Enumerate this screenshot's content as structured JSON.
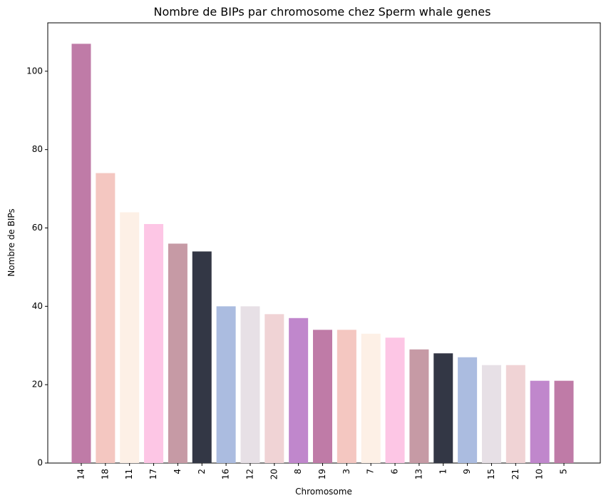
{
  "chart_data": {
    "type": "bar",
    "title": "Nombre de BIPs par chromosome chez Sperm whale genes",
    "xlabel": "Chromosome",
    "ylabel": "Nombre de BIPs",
    "categories": [
      "14",
      "18",
      "11",
      "17",
      "4",
      "2",
      "16",
      "12",
      "20",
      "8",
      "19",
      "3",
      "7",
      "6",
      "13",
      "1",
      "9",
      "15",
      "21",
      "10",
      "5"
    ],
    "values": [
      107,
      74,
      64,
      61,
      56,
      54,
      40,
      40,
      38,
      37,
      34,
      34,
      33,
      32,
      29,
      28,
      27,
      25,
      25,
      21,
      21
    ],
    "colors": [
      "#bf7ba7",
      "#f4c7c1",
      "#fdf0e6",
      "#fdc6e5",
      "#c69aa5",
      "#333745",
      "#abbce0",
      "#e7e0e6",
      "#f0d3d5",
      "#c087cc",
      "#bf7ba7",
      "#f4c7c1",
      "#fdf0e6",
      "#fdc6e5",
      "#c69aa5",
      "#333745",
      "#abbce0",
      "#e7e0e6",
      "#f0d3d5",
      "#c087cc",
      "#bf7ba7"
    ],
    "ylim": [
      0,
      112.35
    ],
    "yticks": [
      0,
      20,
      40,
      60,
      80,
      100
    ],
    "grid": false,
    "legend": "none"
  }
}
